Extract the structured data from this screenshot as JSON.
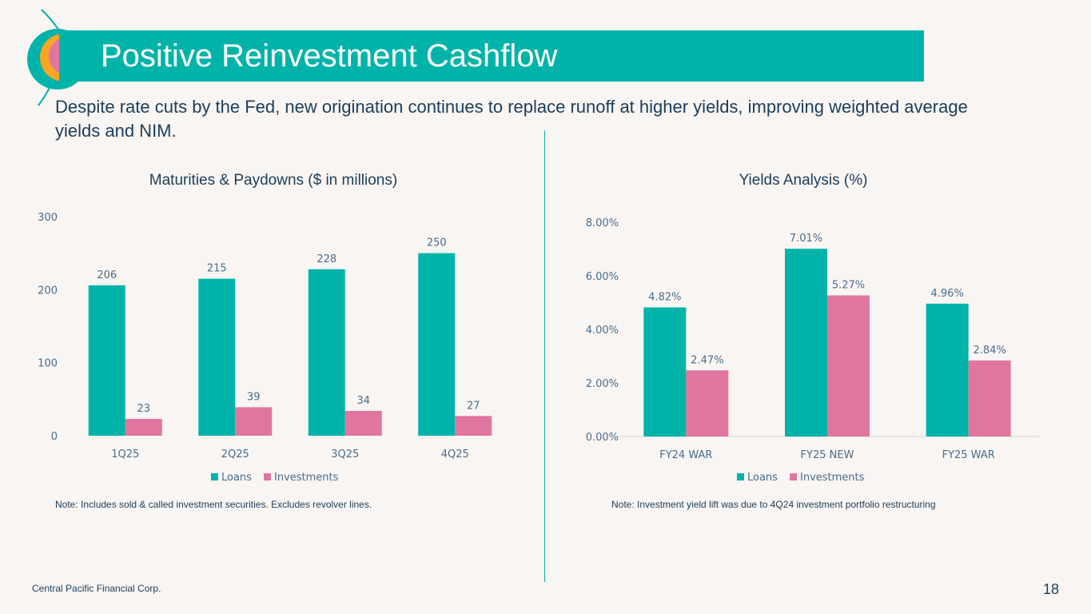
{
  "header": {
    "title": "Positive Reinvestment Cashflow",
    "subtitle": "Despite rate cuts by the Fed, new origination continues to replace runoff at higher yields, improving weighted average yields and NIM."
  },
  "colors": {
    "teal": "#00b3a9",
    "pink": "#e0769f",
    "text": "#1c3d5a",
    "axis": "#4a6d8c"
  },
  "chart_data": [
    {
      "type": "bar",
      "title": "Maturities & Paydowns ($ in millions)",
      "categories": [
        "1Q25",
        "2Q25",
        "3Q25",
        "4Q25"
      ],
      "series": [
        {
          "name": "Loans",
          "values": [
            206,
            215,
            228,
            250
          ],
          "labels": [
            "206",
            "215",
            "228",
            "250"
          ]
        },
        {
          "name": "Investments",
          "values": [
            23,
            39,
            34,
            27
          ],
          "labels": [
            "23",
            "39",
            "34",
            "27"
          ]
        }
      ],
      "ylim": [
        0,
        300
      ],
      "yticks": [
        "0",
        "100",
        "200",
        "300"
      ],
      "legend": "bottom",
      "note": "Note: Includes sold & called investment securities. Excludes revolver lines."
    },
    {
      "type": "bar",
      "title": "Yields Analysis (%)",
      "categories": [
        "FY24 WAR",
        "FY25 NEW",
        "FY25 WAR"
      ],
      "series": [
        {
          "name": "Loans",
          "values": [
            4.82,
            7.01,
            4.96
          ],
          "labels": [
            "4.82%",
            "7.01%",
            "4.96%"
          ]
        },
        {
          "name": "Investments",
          "values": [
            2.47,
            5.27,
            2.84
          ],
          "labels": [
            "2.47%",
            "5.27%",
            "2.84%"
          ]
        }
      ],
      "ylim": [
        0,
        8
      ],
      "yticks": [
        "0.00%",
        "2.00%",
        "4.00%",
        "6.00%",
        "8.00%"
      ],
      "legend": "bottom",
      "note": "Note: Investment yield lift was due to 4Q24 investment portfolio restructuring"
    }
  ],
  "footer": {
    "company": "Central Pacific Financial Corp.",
    "page": "18"
  }
}
